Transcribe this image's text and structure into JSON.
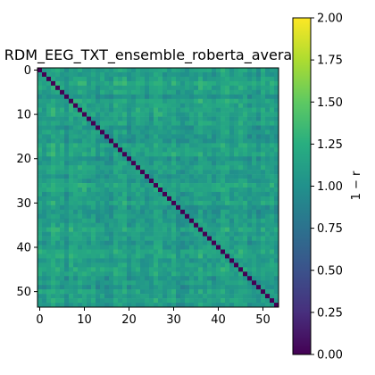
{
  "chart_data": {
    "type": "heatmap",
    "title": "RDM_EEG_TXT_ensemble_roberta_average",
    "size": 54,
    "x_ticks": [
      0,
      10,
      20,
      30,
      40,
      50
    ],
    "y_ticks": [
      0,
      10,
      20,
      30,
      40,
      50
    ],
    "xlim": [
      -0.5,
      53.5
    ],
    "ylim": [
      53.5,
      -0.5
    ],
    "colormap": "viridis",
    "colorbar": {
      "label": "1 − r",
      "min": 0.0,
      "max": 2.0,
      "ticks": [
        "0.00",
        "0.25",
        "0.50",
        "0.75",
        "1.00",
        "1.25",
        "1.50",
        "1.75",
        "2.00"
      ]
    },
    "diagonal_value": 0.0,
    "off_diagonal_typical_range": [
      0.75,
      1.5
    ],
    "off_diagonal_mean": 1.1,
    "colors": {
      "viridis_0": "#440154",
      "viridis_25": "#3b528b",
      "viridis_50": "#21918c",
      "viridis_75": "#5ec962",
      "viridis_100": "#fde725"
    }
  }
}
